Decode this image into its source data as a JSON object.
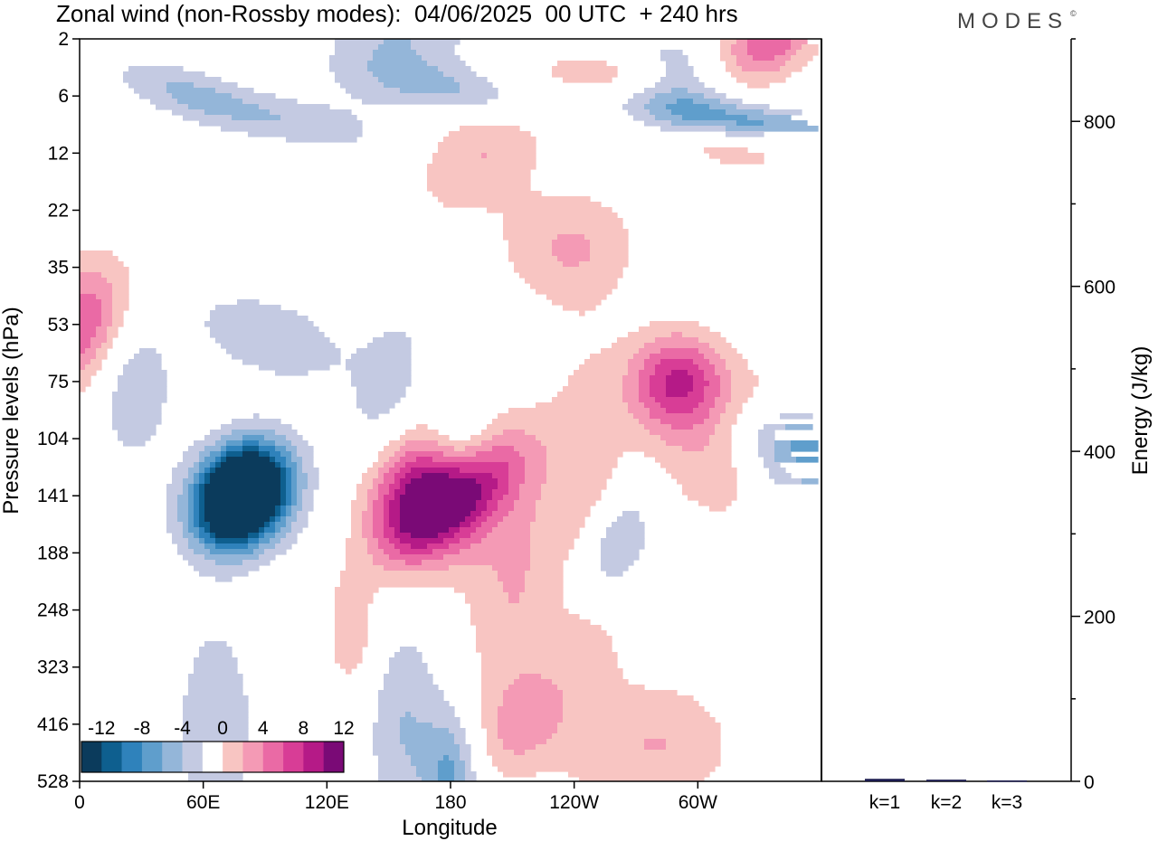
{
  "header": {
    "title": "Zonal wind (non-Rossby modes):  04/06/2025  00 UTC  + 240 hrs",
    "brand": "MODES",
    "brand_mark": "©"
  },
  "chart_data": [
    {
      "type": "heatmap",
      "title": "Zonal wind (non-Rossby modes):  04/06/2025  00 UTC  + 240 hrs",
      "xlabel": "Longitude",
      "ylabel": "Pressure levels (hPa)",
      "x_ticks": [
        "0",
        "60E",
        "120E",
        "180",
        "120W",
        "60W"
      ],
      "y_ticks": [
        "2",
        "6",
        "12",
        "22",
        "35",
        "53",
        "75",
        "104",
        "141",
        "188",
        "248",
        "323",
        "416",
        "528"
      ],
      "colorbar": {
        "tick_labels": [
          "-12",
          "-8",
          "-4",
          "0",
          "4",
          "8",
          "12"
        ],
        "levels": [
          -14,
          -12,
          -10,
          -8,
          -6,
          -4,
          -2,
          2,
          4,
          6,
          8,
          10,
          12,
          14
        ],
        "colors": [
          "#0b3b5c",
          "#0e5f8f",
          "#2f82bb",
          "#5f9ecc",
          "#94b6d9",
          "#c4cae2",
          "#ffffff",
          "#f8c5c2",
          "#f49ab5",
          "#ea6aa5",
          "#d83d96",
          "#b51a87",
          "#7a0a76"
        ]
      },
      "features": [
        {
          "lon": 78,
          "p": 141,
          "value": -14
        },
        {
          "lon": 80,
          "p": 141,
          "value": -12
        },
        {
          "lon": 162,
          "p": 141,
          "value": 12
        },
        {
          "lon": 185,
          "p": 141,
          "value": 8
        },
        {
          "lon": 290,
          "p": 75,
          "value": 10
        },
        {
          "lon": 350,
          "p": 104,
          "value": -10
        },
        {
          "lon": 255,
          "p": 188,
          "value": -6
        },
        {
          "lon": 195,
          "p": 12,
          "value": 4
        },
        {
          "lon": 290,
          "p": 6,
          "value": -6
        },
        {
          "lon": 335,
          "p": 2,
          "value": 8
        },
        {
          "lon": 0,
          "p": 53,
          "value": 8
        },
        {
          "lon": 155,
          "p": 2,
          "value": -4
        },
        {
          "lon": 215,
          "p": 416,
          "value": 4
        }
      ]
    },
    {
      "type": "bar",
      "categories": [
        "k=1",
        "k=2",
        "k=3"
      ],
      "values": [
        3,
        2,
        1
      ],
      "ylabel": "Energy (J/kg)",
      "ylim": [
        0,
        900
      ],
      "y_ticks": [
        0,
        200,
        400,
        600,
        800
      ],
      "bar_color": "#1a1a4e"
    }
  ]
}
